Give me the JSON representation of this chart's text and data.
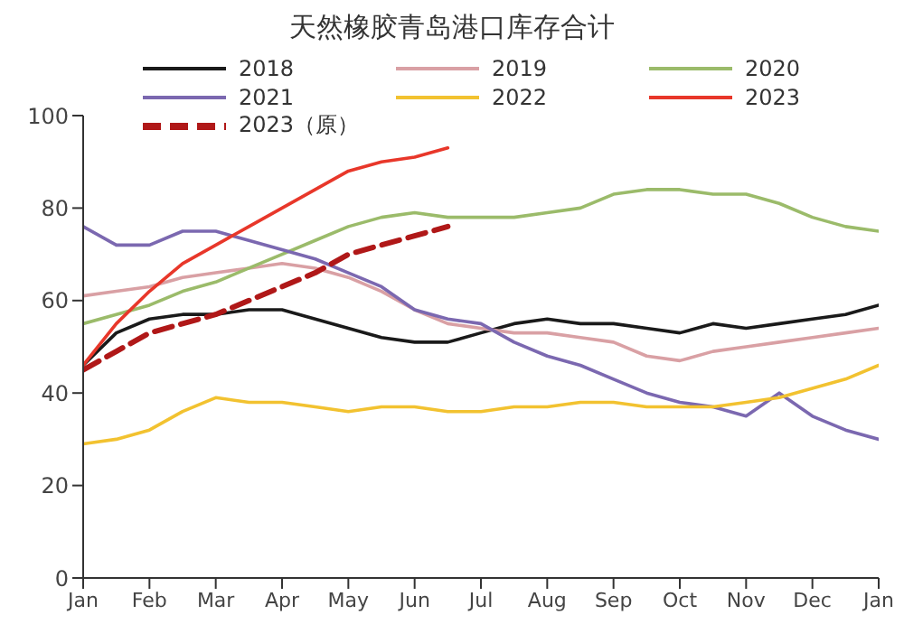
{
  "chart_data": {
    "type": "line",
    "title": "天然橡胶青岛港口库存合计",
    "categories": [
      "Jan",
      null,
      "Feb",
      null,
      "Mar",
      null,
      "Apr",
      null,
      "May",
      null,
      "Jun",
      null,
      "Jul",
      null,
      "Aug",
      null,
      "Sep",
      null,
      "Oct",
      null,
      "Nov",
      null,
      "Dec",
      null,
      "Jan"
    ],
    "ylim": [
      0,
      100
    ],
    "yticks": [
      0,
      20,
      40,
      60,
      80,
      100
    ],
    "legend": "top",
    "marker": "none",
    "series": [
      {
        "name": "2018",
        "color": "#1a1a1a",
        "values": [
          46,
          53,
          56,
          57,
          57,
          58,
          58,
          56,
          54,
          52,
          51,
          51,
          53,
          55,
          56,
          55,
          55,
          54,
          53,
          55,
          54,
          55,
          56,
          57,
          59
        ]
      },
      {
        "name": "2019",
        "color": "#d9a0a4",
        "values": [
          61,
          62,
          63,
          65,
          66,
          67,
          68,
          67,
          65,
          62,
          58,
          55,
          54,
          53,
          53,
          52,
          51,
          48,
          47,
          49,
          50,
          51,
          52,
          53,
          54
        ]
      },
      {
        "name": "2020",
        "color": "#9bbb6a",
        "values": [
          55,
          57,
          59,
          62,
          64,
          67,
          70,
          73,
          76,
          78,
          79,
          78,
          78,
          78,
          79,
          80,
          83,
          84,
          84,
          83,
          83,
          81,
          78,
          76,
          75
        ]
      },
      {
        "name": "2021",
        "color": "#7b68b0",
        "values": [
          76,
          72,
          72,
          75,
          75,
          73,
          71,
          69,
          66,
          63,
          58,
          56,
          55,
          51,
          48,
          46,
          43,
          40,
          38,
          37,
          35,
          40,
          35,
          32,
          30
        ]
      },
      {
        "name": "2022",
        "color": "#f2c230",
        "values": [
          29,
          30,
          32,
          36,
          39,
          38,
          38,
          37,
          36,
          37,
          37,
          36,
          36,
          37,
          37,
          38,
          38,
          37,
          37,
          37,
          38,
          39,
          41,
          43,
          46
        ]
      },
      {
        "name": "2023",
        "color": "#e8372a",
        "values": [
          46,
          55,
          62,
          68,
          72,
          76,
          80,
          84,
          88,
          90,
          91,
          93,
          null,
          null,
          null,
          null,
          null,
          null,
          null,
          null,
          null,
          null,
          null,
          null,
          null
        ]
      },
      {
        "name": "2023（原）",
        "color": "#b01818",
        "line_style": "dashed",
        "values": [
          45,
          49,
          53,
          55,
          57,
          60,
          63,
          66,
          70,
          72,
          74,
          76,
          null,
          null,
          null,
          null,
          null,
          null,
          null,
          null,
          null,
          null,
          null,
          null,
          null
        ]
      }
    ]
  }
}
